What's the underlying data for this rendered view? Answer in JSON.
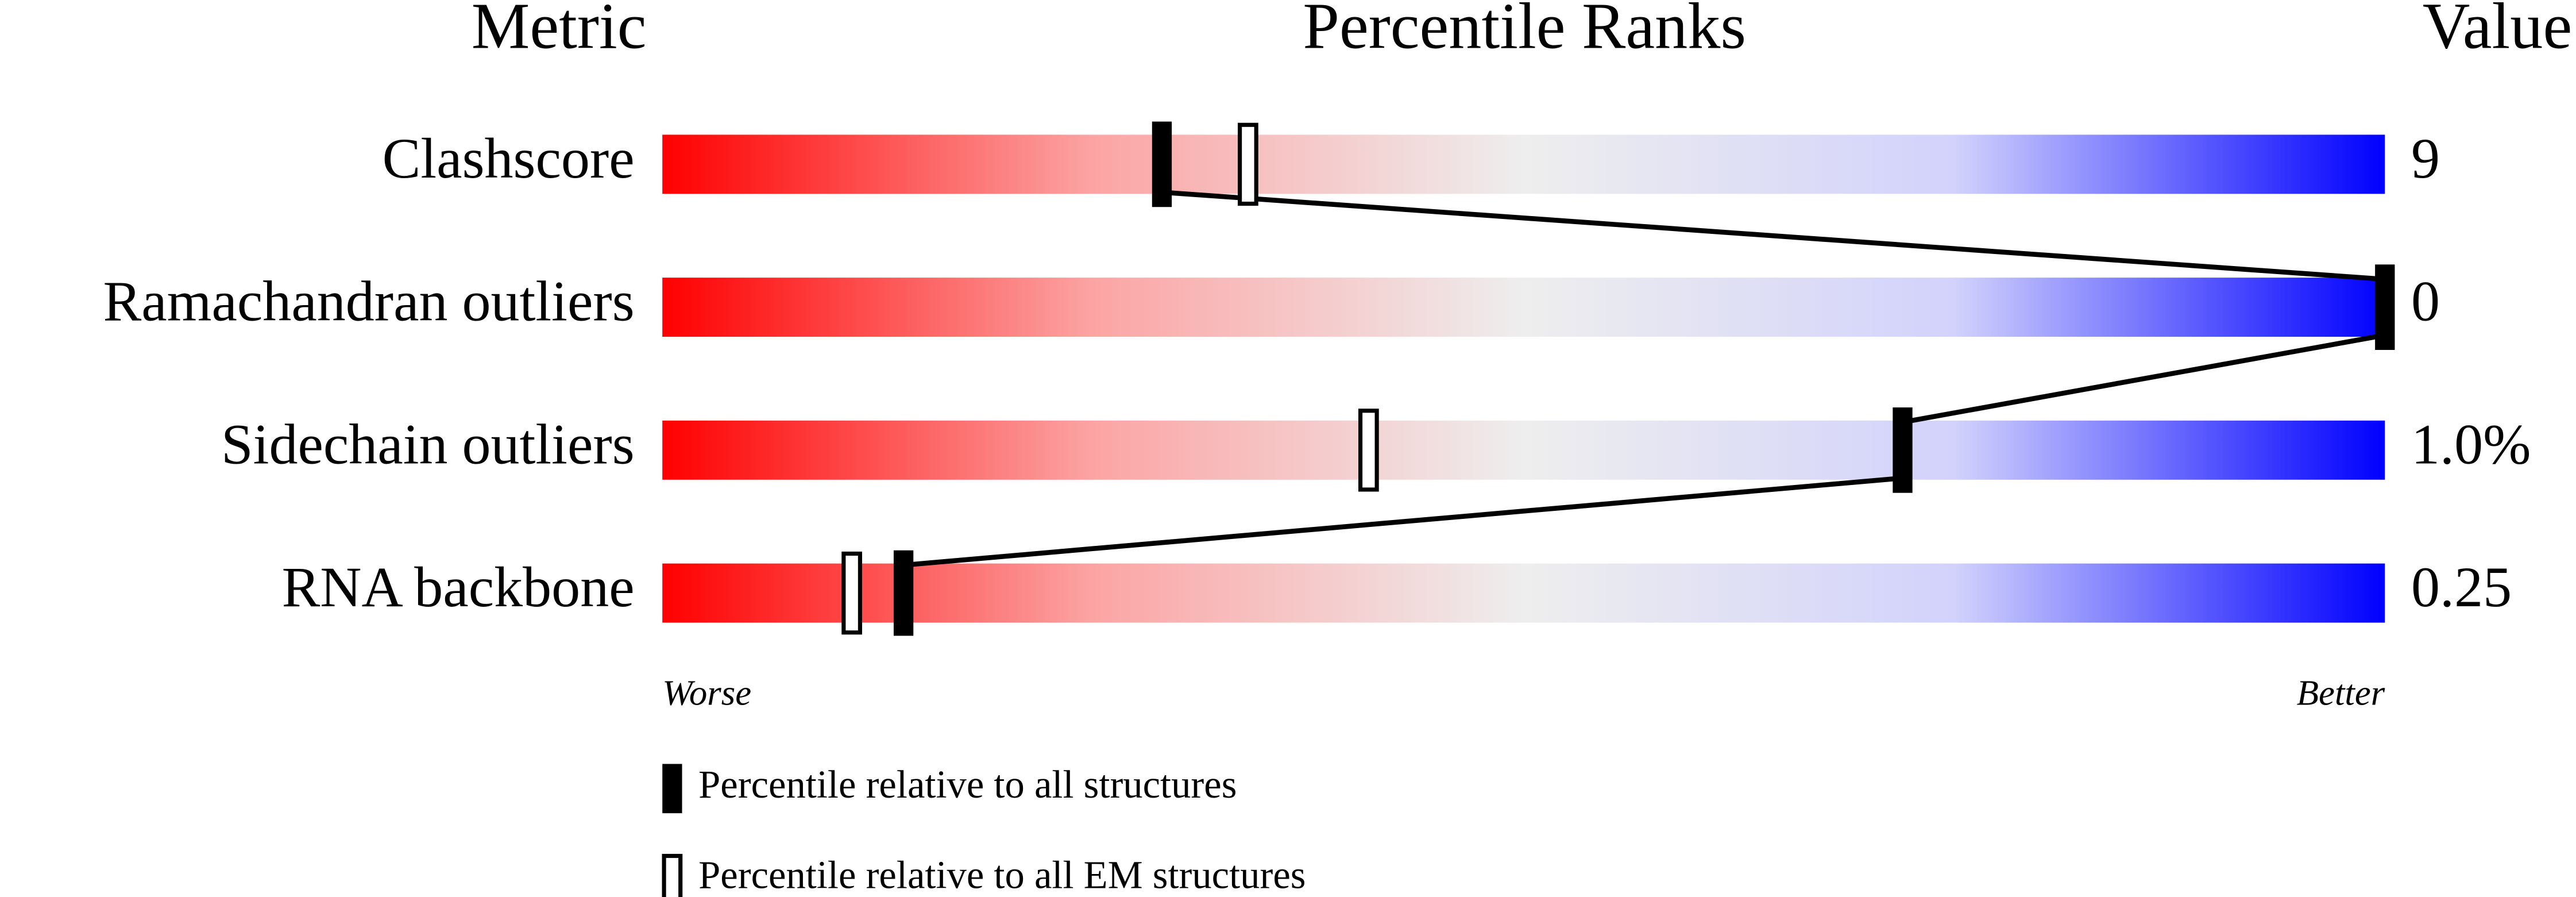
{
  "chart_data": {
    "type": "percentile",
    "title": "Percentile Ranks",
    "metric_header": "Metric",
    "value_header": "Value",
    "categories": [
      "Clashscore",
      "Ramachandran outliers",
      "Sidechain outliers",
      "RNA backbone"
    ],
    "metric_values": [
      "9",
      "0",
      "1.0%",
      "0.25"
    ],
    "series": [
      {
        "name": "Percentile relative to all structures",
        "color": "#000000",
        "values": [
          29,
          100,
          72,
          14
        ]
      },
      {
        "name": "Percentile relative to all EM structures",
        "color": "#000000",
        "values": [
          34,
          null,
          41,
          11
        ]
      }
    ],
    "xlim": [
      0,
      100
    ],
    "x_low_label": "Worse",
    "x_high_label": "Better"
  }
}
